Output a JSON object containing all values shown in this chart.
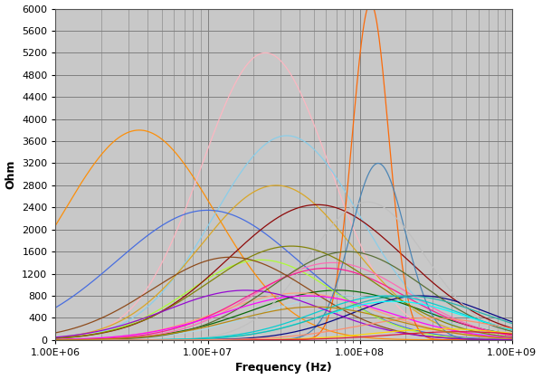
{
  "xlabel": "Frequency (Hz)",
  "ylabel": "Ohm",
  "xmin": 1000000.0,
  "xmax": 1000000000.0,
  "ymin": 0,
  "ymax": 6000,
  "yticks": [
    0,
    400,
    800,
    1200,
    1600,
    2000,
    2400,
    2800,
    3200,
    3600,
    4000,
    4400,
    4800,
    5200,
    5600,
    6000
  ],
  "background_color": "#c8c8c8",
  "figure_bg": "#ffffff",
  "grid_color": "#808080",
  "curve_params": [
    [
      "#FF8C00",
      6.55,
      3800,
      0.5,
      0
    ],
    [
      "#FFB6C1",
      7.38,
      5200,
      0.42,
      0
    ],
    [
      "#87CEEB",
      7.52,
      3700,
      0.48,
      0
    ],
    [
      "#DAA520",
      7.45,
      2800,
      0.5,
      0
    ],
    [
      "#4169E1",
      7.0,
      2350,
      0.6,
      0
    ],
    [
      "#ADD8E6",
      7.9,
      800,
      0.55,
      0
    ],
    [
      "#006400",
      7.85,
      900,
      0.55,
      0
    ],
    [
      "#ADFF2F",
      7.35,
      1450,
      0.48,
      0
    ],
    [
      "#8B0000",
      7.72,
      2450,
      0.58,
      0
    ],
    [
      "#FF69B4",
      7.82,
      1400,
      0.5,
      0
    ],
    [
      "#FFA07A",
      7.6,
      850,
      0.52,
      0
    ],
    [
      "#FF6600",
      8.07,
      6100,
      0.12,
      0
    ],
    [
      "#4682B4",
      8.12,
      3200,
      0.18,
      0
    ],
    [
      "#000080",
      8.4,
      800,
      0.45,
      0
    ],
    [
      "#C0C0C0",
      8.05,
      2500,
      0.38,
      0
    ],
    [
      "#FF1493",
      7.78,
      1300,
      0.52,
      0
    ],
    [
      "#808000",
      7.55,
      1700,
      0.55,
      0
    ],
    [
      "#556B2F",
      7.92,
      1600,
      0.5,
      0
    ],
    [
      "#8B4513",
      7.15,
      1500,
      0.52,
      0
    ],
    [
      "#00CED1",
      8.18,
      800,
      0.48,
      0
    ],
    [
      "#FF00FF",
      7.65,
      800,
      0.55,
      0
    ],
    [
      "#9400D3",
      7.25,
      900,
      0.52,
      0
    ],
    [
      "#00FFFF",
      8.22,
      700,
      0.48,
      0
    ],
    [
      "#FFD700",
      8.55,
      200,
      0.45,
      0
    ],
    [
      "#DC143C",
      8.65,
      150,
      0.45,
      0
    ],
    [
      "#20B2AA",
      8.3,
      800,
      0.5,
      0
    ],
    [
      "#FF8C69",
      8.45,
      400,
      0.48,
      0
    ],
    [
      "#B8860B",
      7.7,
      600,
      0.52,
      0
    ]
  ]
}
